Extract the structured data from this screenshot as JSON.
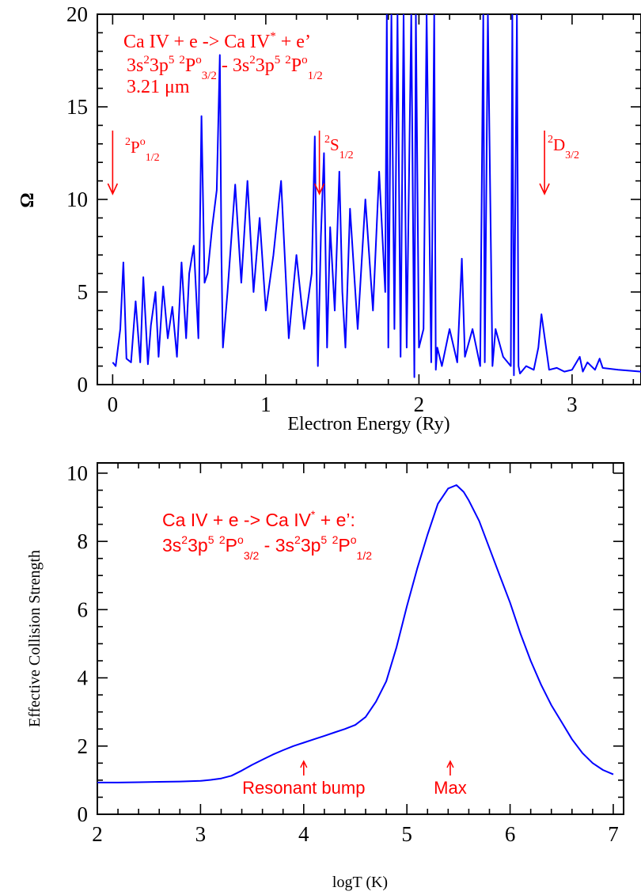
{
  "chart_data": [
    {
      "type": "line",
      "xlabel": "Electron Energy (Ry)",
      "ylabel": "Ω",
      "xlim": [
        -0.1,
        3.45
      ],
      "ylim": [
        0,
        20
      ],
      "xticks": [
        "0",
        "1",
        "2",
        "3"
      ],
      "yticks": [
        "0",
        "5",
        "10",
        "15",
        "20"
      ],
      "annotation": {
        "line1": "Ca IV + e -> Ca IV* + e'",
        "line2": "3s²3p⁵ ²P°3/2 - 3s²3p⁵ ²P°1/2",
        "line3": "3.21 μm"
      },
      "thresholds": [
        {
          "label": "2P°1/2",
          "x": 0.0
        },
        {
          "label": "2S1/2",
          "x": 1.35
        },
        {
          "label": "2D3/2",
          "x": 2.82
        }
      ],
      "series": [
        {
          "color": "#0000ff",
          "x": [
            0.0,
            0.02,
            0.05,
            0.07,
            0.09,
            0.12,
            0.15,
            0.18,
            0.2,
            0.23,
            0.25,
            0.28,
            0.3,
            0.33,
            0.36,
            0.39,
            0.42,
            0.45,
            0.48,
            0.5,
            0.53,
            0.56,
            0.58,
            0.6,
            0.62,
            0.65,
            0.68,
            0.7,
            0.71,
            0.72,
            0.75,
            0.8,
            0.84,
            0.88,
            0.92,
            0.96,
            1.0,
            1.05,
            1.1,
            1.15,
            1.2,
            1.25,
            1.3,
            1.32,
            1.34,
            1.36,
            1.38,
            1.4,
            1.42,
            1.45,
            1.48,
            1.5,
            1.52,
            1.55,
            1.6,
            1.65,
            1.7,
            1.74,
            1.78,
            1.79,
            1.8,
            1.82,
            1.84,
            1.86,
            1.88,
            1.9,
            1.92,
            1.95,
            1.97,
            1.98,
            2.0,
            2.03,
            2.05,
            2.08,
            2.1,
            2.11,
            2.12,
            2.15,
            2.2,
            2.25,
            2.28,
            2.3,
            2.35,
            2.4,
            2.42,
            2.43,
            2.45,
            2.48,
            2.5,
            2.55,
            2.6,
            2.61,
            2.62,
            2.64,
            2.65,
            2.66,
            2.7,
            2.75,
            2.78,
            2.8,
            2.85,
            2.9,
            2.95,
            3.0,
            3.05,
            3.07,
            3.1,
            3.15,
            3.18,
            3.2,
            3.3,
            3.45
          ],
          "y": [
            1.2,
            1.0,
            3.0,
            6.6,
            1.4,
            1.2,
            4.5,
            1.2,
            5.8,
            1.1,
            3.2,
            5.0,
            1.5,
            5.3,
            2.5,
            4.2,
            1.5,
            6.6,
            2.5,
            6.0,
            7.5,
            2.5,
            14.5,
            5.5,
            6.0,
            8.5,
            10.5,
            17.8,
            7.0,
            2.0,
            5.0,
            10.8,
            5.5,
            11.0,
            5.0,
            9.0,
            4.0,
            7.0,
            11.0,
            2.5,
            7.0,
            3.0,
            6.0,
            13.4,
            1.0,
            8.0,
            12.5,
            2.0,
            8.5,
            4.0,
            11.5,
            5.0,
            2.0,
            9.5,
            3.0,
            10.0,
            4.0,
            11.5,
            5.0,
            20.0,
            2.0,
            20.0,
            3.0,
            20.0,
            1.5,
            20.0,
            2.0,
            20.0,
            0.4,
            20.0,
            2.0,
            3.0,
            20.0,
            1.2,
            20.0,
            0.8,
            2.0,
            1.0,
            3.0,
            1.2,
            6.8,
            1.5,
            3.0,
            1.0,
            20.0,
            1.2,
            20.0,
            1.0,
            3.0,
            1.5,
            1.0,
            20.0,
            0.5,
            20.0,
            1.0,
            0.6,
            1.0,
            0.8,
            2.0,
            3.8,
            0.8,
            0.9,
            0.7,
            0.8,
            1.5,
            0.7,
            1.2,
            0.8,
            1.4,
            0.9,
            0.8,
            0.7
          ]
        }
      ]
    },
    {
      "type": "line",
      "xlabel": "logT (K)",
      "ylabel": "Effective Collision Strength",
      "xlim": [
        2,
        7.1
      ],
      "ylim": [
        0,
        10.3
      ],
      "xticks": [
        "2",
        "3",
        "4",
        "5",
        "6",
        "7"
      ],
      "yticks": [
        "0",
        "2",
        "4",
        "6",
        "8",
        "10"
      ],
      "annotation": {
        "line1": "Ca IV + e -> Ca IV* + e':",
        "line2": "3s²3p⁵ ²P°3/2 - 3s²3p⁵ ²P°1/2"
      },
      "markers": [
        {
          "label": "Resonant bump",
          "x": 4.0
        },
        {
          "label": "Max",
          "x": 5.42
        }
      ],
      "series": [
        {
          "color": "#0000ff",
          "x": [
            2.0,
            2.2,
            2.4,
            2.6,
            2.8,
            3.0,
            3.1,
            3.2,
            3.3,
            3.4,
            3.5,
            3.6,
            3.7,
            3.8,
            3.9,
            4.0,
            4.1,
            4.2,
            4.3,
            4.4,
            4.5,
            4.6,
            4.7,
            4.75,
            4.8,
            4.9,
            5.0,
            5.1,
            5.2,
            5.3,
            5.4,
            5.48,
            5.55,
            5.6,
            5.7,
            5.8,
            5.9,
            6.0,
            6.1,
            6.2,
            6.3,
            6.4,
            6.5,
            6.6,
            6.7,
            6.8,
            6.9,
            7.0
          ],
          "y": [
            0.93,
            0.93,
            0.94,
            0.95,
            0.96,
            0.98,
            1.01,
            1.05,
            1.13,
            1.28,
            1.45,
            1.6,
            1.75,
            1.88,
            2.0,
            2.1,
            2.2,
            2.3,
            2.4,
            2.5,
            2.62,
            2.85,
            3.3,
            3.6,
            3.9,
            4.9,
            6.1,
            7.2,
            8.2,
            9.1,
            9.55,
            9.65,
            9.45,
            9.2,
            8.6,
            7.8,
            7.0,
            6.2,
            5.3,
            4.5,
            3.8,
            3.2,
            2.7,
            2.2,
            1.8,
            1.5,
            1.3,
            1.17
          ]
        }
      ]
    }
  ]
}
